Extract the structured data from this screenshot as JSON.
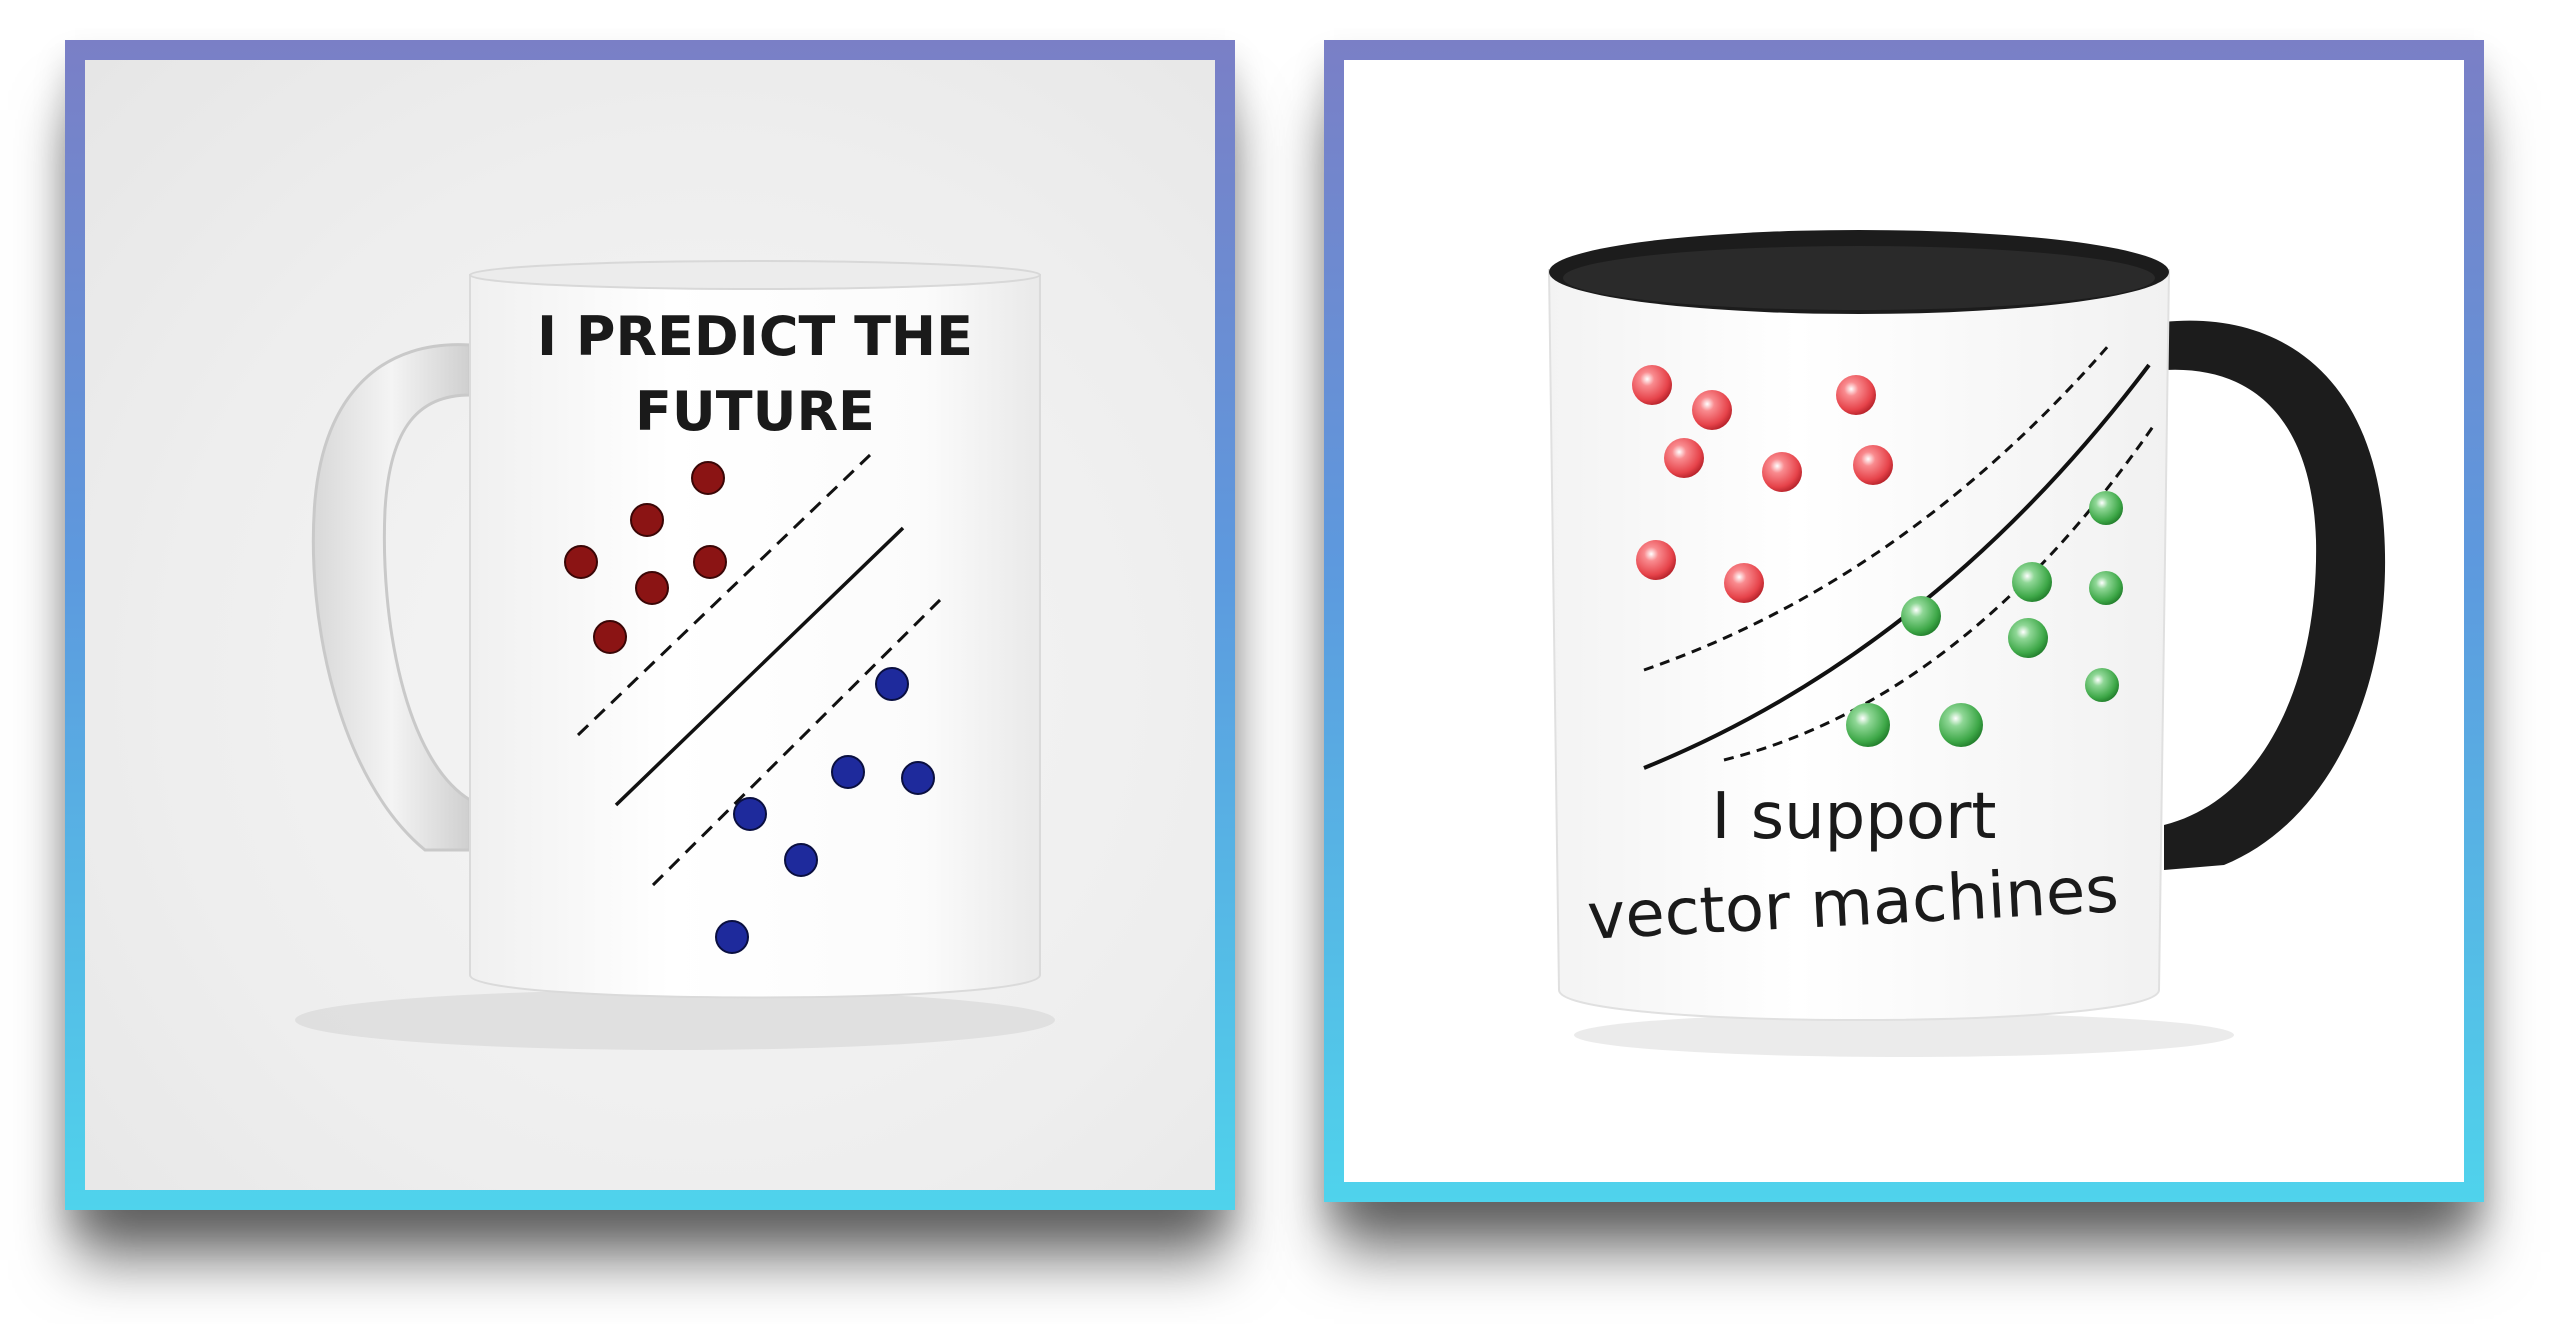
{
  "left_mug": {
    "line1": "I PREDICT THE",
    "line2": "FUTURE",
    "class_a_color": "#8b1414",
    "class_b_color": "#1e2a9c"
  },
  "right_mug": {
    "line1": "I support",
    "line2": "vector machines",
    "class_a_color": "#e6434a",
    "class_b_color": "#3ea848",
    "handle_color": "#1c1c1c"
  },
  "frame_gradient": [
    "#7a7fc6",
    "#5d99de",
    "#4fd3ec"
  ]
}
